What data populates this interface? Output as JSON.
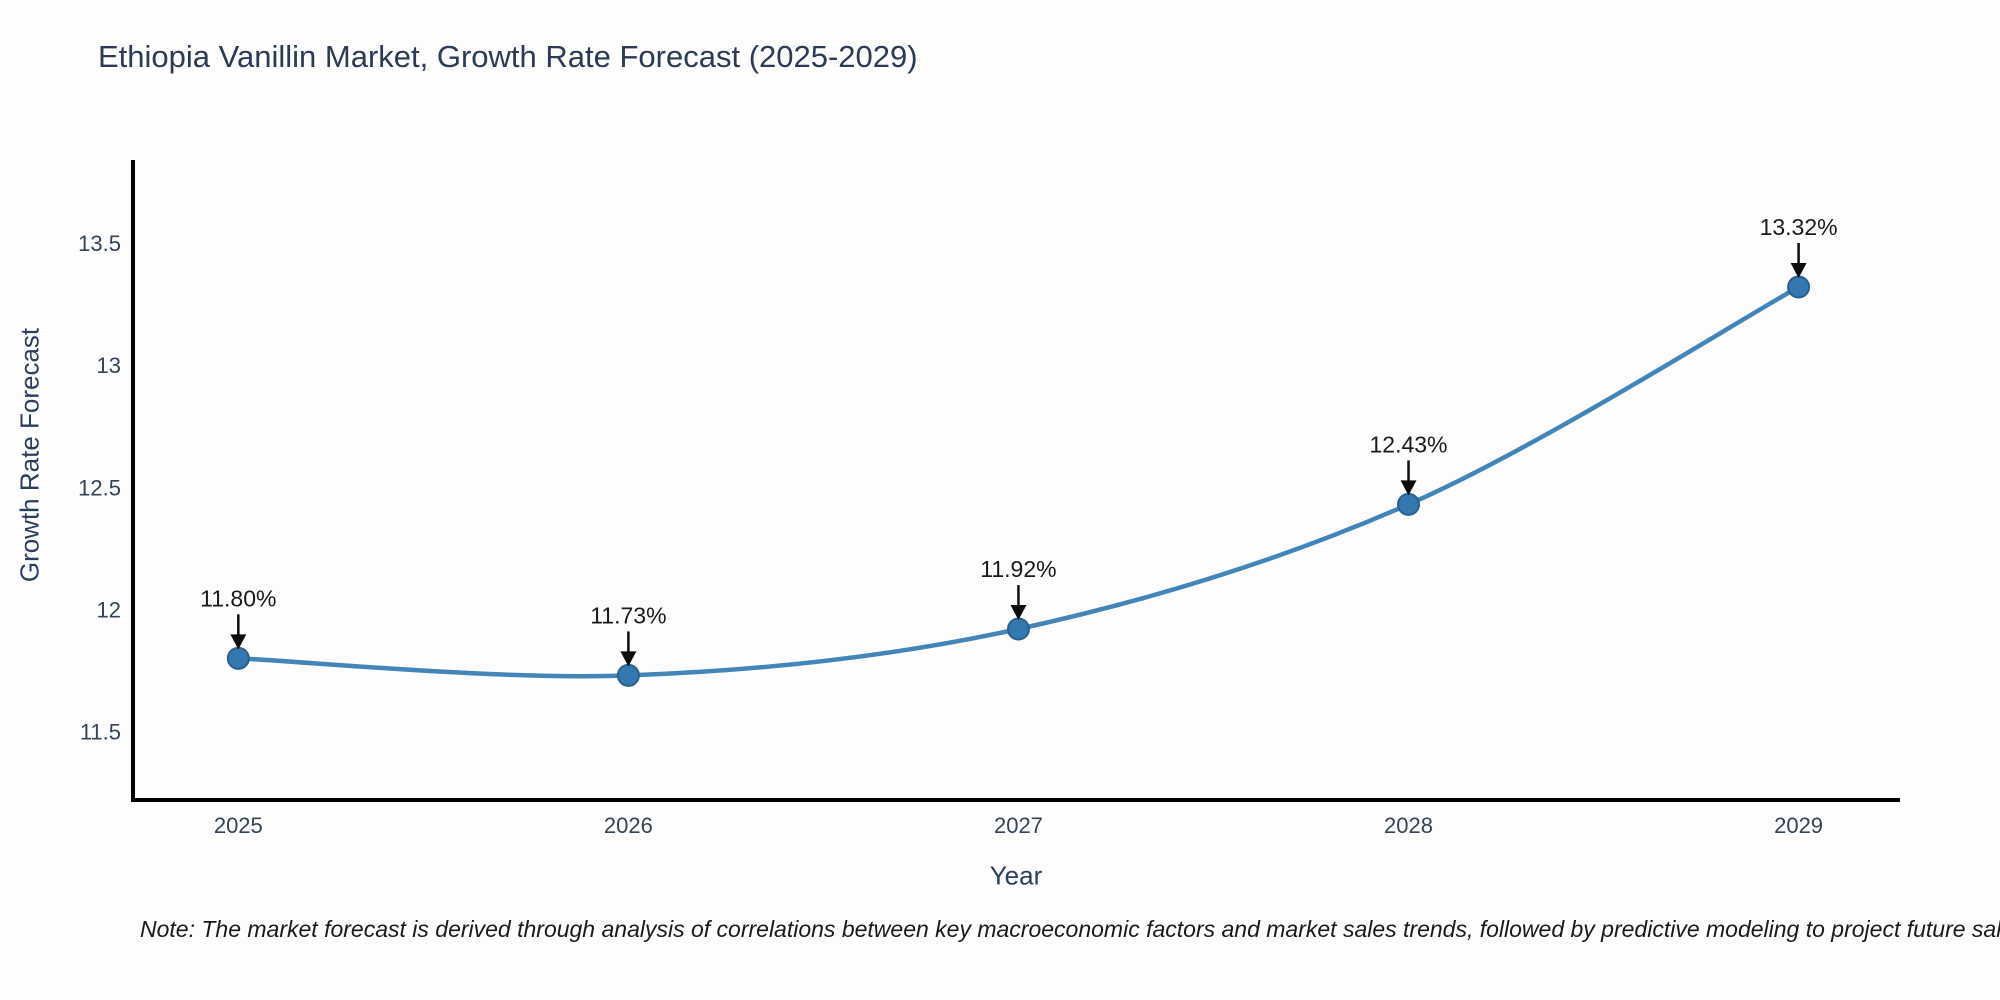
{
  "title": "Ethiopia Vanillin Market, Growth Rate Forecast (2025-2029)",
  "footnote": "Note: The market forecast is derived through analysis of correlations between key macroeconomic factors and market sales trends, followed by predictive modeling to project future sal",
  "colors": {
    "background": "#fdfdfd",
    "title_text": "#2b3a55",
    "axis_label_text": "#2a3f5f",
    "tick_text": "#344457",
    "spine": "#000000",
    "line": "#4385b9",
    "marker_fill": "#3578b0",
    "marker_edge": "#2a5f8e",
    "annotation_arrow": "#0d0d0d",
    "annotation_text": "#1a1a1a"
  },
  "chart_data": {
    "type": "line",
    "title": "Ethiopia Vanillin Market, Growth Rate Forecast (2025-2029)",
    "xlabel": "Year",
    "ylabel": "Growth Rate Forecast",
    "x": [
      2025,
      2026,
      2027,
      2028,
      2029
    ],
    "y": [
      11.8,
      11.73,
      11.92,
      12.43,
      13.32
    ],
    "point_labels": [
      "11.80%",
      "11.73%",
      "11.92%",
      "12.43%",
      "13.32%"
    ],
    "xticks": [
      2025,
      2026,
      2027,
      2028,
      2029
    ],
    "yticks": [
      11.5,
      12,
      12.5,
      13,
      13.5
    ],
    "xlim": [
      2024.73,
      2029.26
    ],
    "ylim": [
      11.22,
      13.84
    ],
    "grid": false,
    "legend": null,
    "line_smoothing": "spline",
    "marker": "circle"
  }
}
